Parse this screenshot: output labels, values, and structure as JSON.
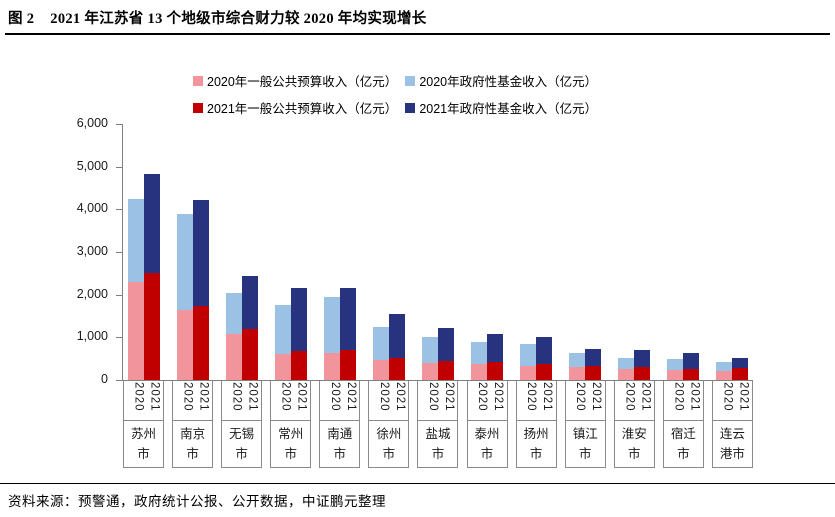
{
  "header": {
    "figure_label": "图 2",
    "title": "2021 年江苏省 13 个地级市综合财力较 2020 年均实现增长"
  },
  "footer": {
    "source": "资料来源：预警通，政府统计公报、公开数据，中证鹏元整理"
  },
  "colors": {
    "pink_2020_budget": "#F2949B",
    "light_blue_2020_fund": "#9BC1E5",
    "dark_red_2021_budget": "#C00000",
    "dark_blue_2021_fund": "#28337F",
    "axis": "#7F7F7F",
    "label_grid": "#8A8A8A"
  },
  "chart_data": {
    "type": "bar",
    "stacked": true,
    "unit": "亿元",
    "title": "2021 年江苏省 13 个地级市综合财力较 2020 年均实现增长",
    "categories": [
      "苏州市",
      "南京市",
      "无锡市",
      "常州市",
      "南通市",
      "徐州市",
      "盐城市",
      "泰州市",
      "扬州市",
      "镇江市",
      "淮安市",
      "宿迁市",
      "连云港市"
    ],
    "bar_labels": [
      "2020",
      "2021"
    ],
    "series": [
      {
        "name": "2020年一般公共预算收入（亿元）",
        "color": "#F2949B",
        "bar": "2020",
        "values": [
          2300,
          1640,
          1075,
          615,
          640,
          460,
          400,
          375,
          320,
          295,
          260,
          225,
          220
        ]
      },
      {
        "name": "2020年政府性基金收入（亿元）",
        "color": "#9BC1E5",
        "bar": "2020",
        "values": [
          1950,
          2240,
          960,
          1150,
          1310,
          790,
          615,
          515,
          515,
          345,
          255,
          275,
          205
        ]
      },
      {
        "name": "2021年一般公共预算收入（亿元）",
        "color": "#C00000",
        "bar": "2021",
        "values": [
          2510,
          1730,
          1200,
          676,
          705,
          526,
          440,
          430,
          365,
          330,
          305,
          265,
          285
        ]
      },
      {
        "name": "2021年政府性基金收入（亿元）",
        "color": "#28337F",
        "bar": "2021",
        "values": [
          2320,
          2500,
          1230,
          1475,
          1455,
          1020,
          780,
          655,
          645,
          395,
          395,
          380,
          230
        ]
      }
    ],
    "y_axis": {
      "min": 0,
      "max": 6000,
      "tick_interval": 1000,
      "tick_labels": [
        "0",
        "1,000",
        "2,000",
        "3,000",
        "4,000",
        "5,000",
        "6,000"
      ]
    },
    "legend_position": "top",
    "gridlines": false
  }
}
